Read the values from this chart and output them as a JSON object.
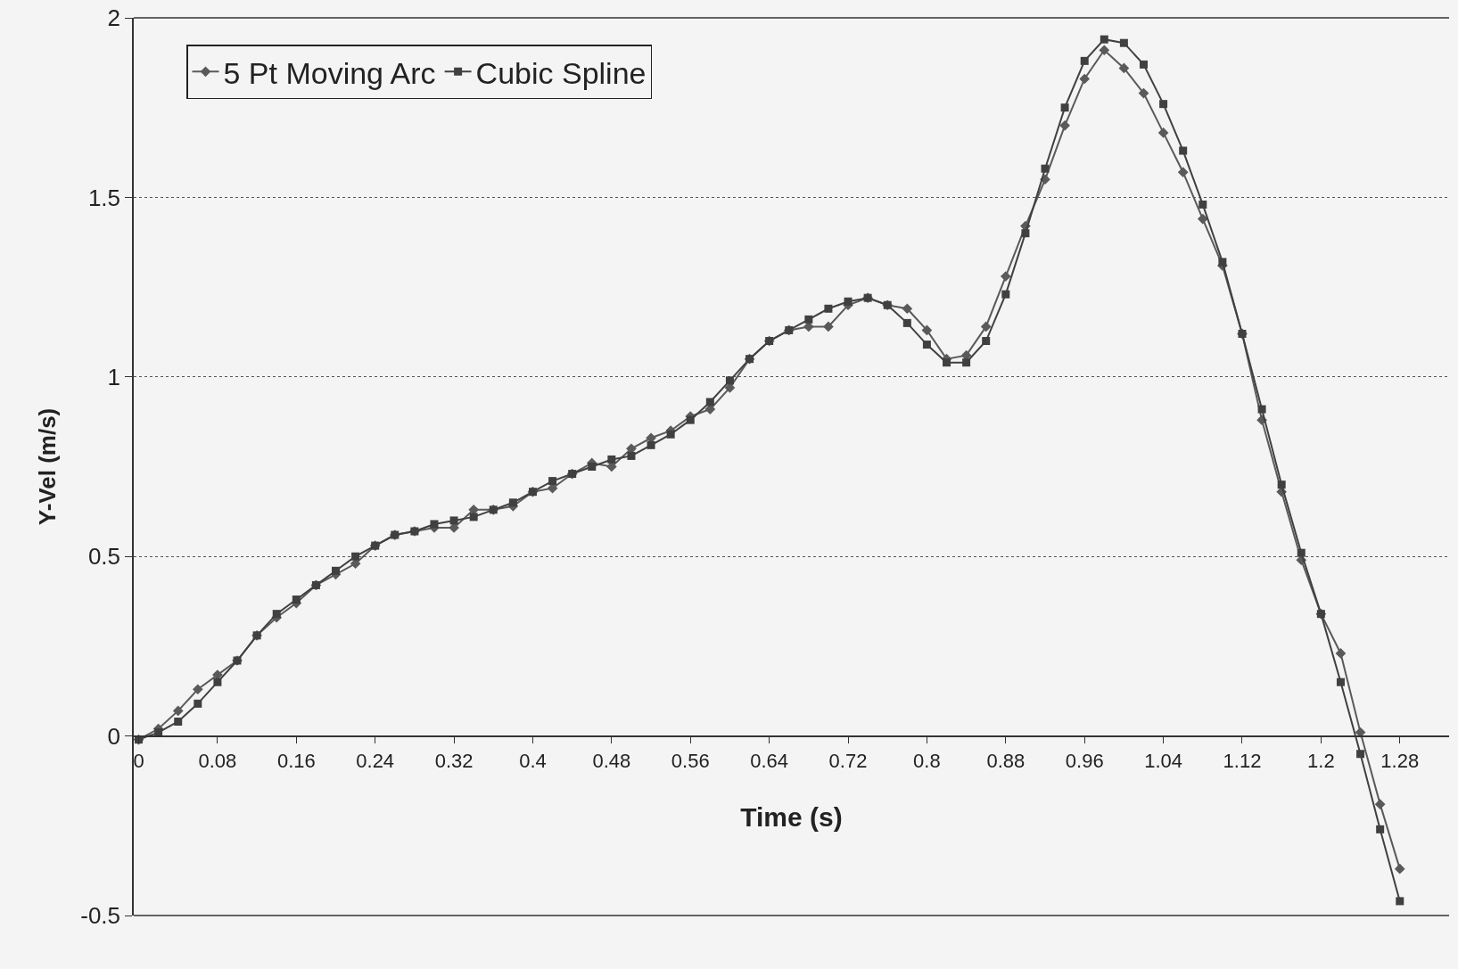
{
  "chart_data": {
    "type": "line",
    "xlabel": "Time (s)",
    "ylabel": "Y-Vel (m/s)",
    "x": [
      0,
      0.02,
      0.04,
      0.06,
      0.08,
      0.1,
      0.12,
      0.14,
      0.16,
      0.18,
      0.2,
      0.22,
      0.24,
      0.26,
      0.28,
      0.3,
      0.32,
      0.34,
      0.36,
      0.38,
      0.4,
      0.42,
      0.44,
      0.46,
      0.48,
      0.5,
      0.52,
      0.54,
      0.56,
      0.58,
      0.6,
      0.62,
      0.64,
      0.66,
      0.68,
      0.7,
      0.72,
      0.74,
      0.76,
      0.78,
      0.8,
      0.82,
      0.84,
      0.86,
      0.88,
      0.9,
      0.92,
      0.94,
      0.96,
      0.98,
      1,
      1.02,
      1.04,
      1.06,
      1.08,
      1.1,
      1.12,
      1.14,
      1.16,
      1.18,
      1.2,
      1.22,
      1.24,
      1.26,
      1.28
    ],
    "series": [
      {
        "name": "5 Pt Moving Arc",
        "color": "#5a5a5a",
        "marker": "diamond",
        "values": [
          -0.01,
          0.02,
          0.07,
          0.13,
          0.17,
          0.21,
          0.28,
          0.33,
          0.37,
          0.42,
          0.45,
          0.48,
          0.53,
          0.56,
          0.57,
          0.58,
          0.58,
          0.63,
          0.63,
          0.64,
          0.68,
          0.69,
          0.73,
          0.76,
          0.75,
          0.8,
          0.83,
          0.85,
          0.89,
          0.91,
          0.97,
          1.05,
          1.1,
          1.13,
          1.14,
          1.14,
          1.2,
          1.22,
          1.2,
          1.19,
          1.13,
          1.05,
          1.06,
          1.14,
          1.28,
          1.42,
          1.55,
          1.7,
          1.83,
          1.91,
          1.86,
          1.79,
          1.68,
          1.57,
          1.44,
          1.31,
          1.12,
          0.88,
          0.68,
          0.49,
          0.34,
          0.23,
          0.01,
          -0.19,
          -0.37
        ]
      },
      {
        "name": "Cubic Spline",
        "color": "#404040",
        "marker": "square",
        "values": [
          -0.01,
          0.01,
          0.04,
          0.09,
          0.15,
          0.21,
          0.28,
          0.34,
          0.38,
          0.42,
          0.46,
          0.5,
          0.53,
          0.56,
          0.57,
          0.59,
          0.6,
          0.61,
          0.63,
          0.65,
          0.68,
          0.71,
          0.73,
          0.75,
          0.77,
          0.78,
          0.81,
          0.84,
          0.88,
          0.93,
          0.99,
          1.05,
          1.1,
          1.13,
          1.16,
          1.19,
          1.21,
          1.22,
          1.2,
          1.15,
          1.09,
          1.04,
          1.04,
          1.1,
          1.23,
          1.4,
          1.58,
          1.75,
          1.88,
          1.94,
          1.93,
          1.87,
          1.76,
          1.63,
          1.48,
          1.32,
          1.12,
          0.91,
          0.7,
          0.51,
          0.34,
          0.15,
          -0.05,
          -0.26,
          -0.46
        ]
      }
    ],
    "xlim": [
      -0.005,
      1.33
    ],
    "xticks": [
      0,
      0.08,
      0.16,
      0.24,
      0.32,
      0.4,
      0.48,
      0.56,
      0.64,
      0.72,
      0.8,
      0.88,
      0.96,
      1.04,
      1.12,
      1.2,
      1.28
    ],
    "ylim": [
      -0.5,
      2
    ],
    "yticks": [
      -0.5,
      0,
      0.5,
      1,
      1.5,
      2
    ],
    "grid": "y",
    "legend": "top left",
    "line_style": "solid"
  }
}
